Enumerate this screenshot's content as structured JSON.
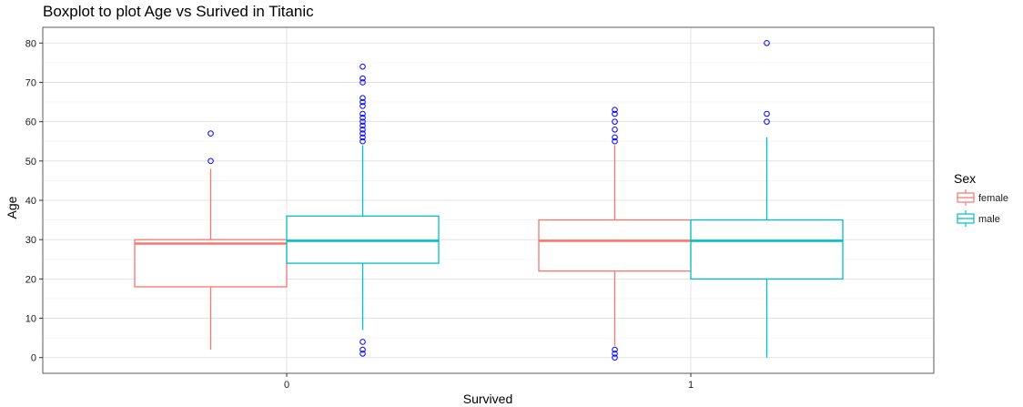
{
  "chart_data": {
    "type": "boxplot",
    "title": "Boxplot to plot Age vs Surived in Titanic",
    "xlabel": "Survived",
    "ylabel": "Age",
    "categories": [
      "0",
      "1"
    ],
    "ylim": [
      -4,
      84
    ],
    "y_ticks": [
      0,
      10,
      20,
      30,
      40,
      50,
      60,
      70,
      80
    ],
    "grid": true,
    "legend": {
      "title": "Sex",
      "position": "right"
    },
    "outlier_color": "#0000ff",
    "series": [
      {
        "name": "female",
        "color": "#f8766d",
        "boxes": [
          {
            "category": "0",
            "lower_whisker": 2,
            "q1": 18,
            "median": 29,
            "q3": 30,
            "upper_whisker": 48,
            "outliers": [
              50,
              57
            ]
          },
          {
            "category": "1",
            "lower_whisker": 3,
            "q1": 22,
            "median": 29.7,
            "q3": 35,
            "upper_whisker": 54,
            "outliers": [
              0,
              1,
              2,
              55,
              56,
              58,
              60,
              62,
              63
            ]
          }
        ]
      },
      {
        "name": "male",
        "color": "#00bfc4",
        "boxes": [
          {
            "category": "0",
            "lower_whisker": 7,
            "q1": 24,
            "median": 29.7,
            "q3": 36,
            "upper_whisker": 54,
            "outliers": [
              1,
              2,
              4,
              55,
              56,
              57,
              58,
              59,
              60,
              61,
              62,
              64,
              65,
              66,
              70,
              71,
              74
            ]
          },
          {
            "category": "1",
            "lower_whisker": 0,
            "q1": 20,
            "median": 29.7,
            "q3": 35,
            "upper_whisker": 56,
            "outliers": [
              60,
              62,
              80
            ]
          }
        ]
      }
    ]
  }
}
